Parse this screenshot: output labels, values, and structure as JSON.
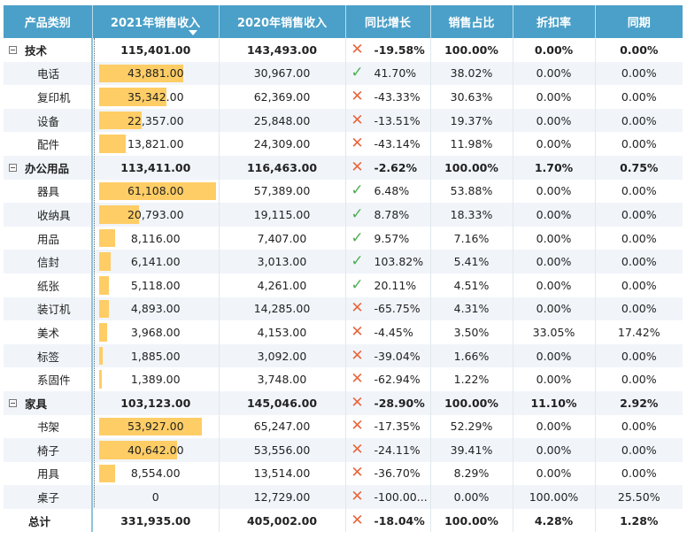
{
  "headers": [
    "产品类别",
    "2021年销售收入",
    "2020年销售收入",
    "同比增长",
    "销售占比",
    "折扣率",
    "同期"
  ],
  "bar_max": 61108,
  "rows": [
    {
      "type": "group",
      "label": "技术",
      "v2021": "115,401.00",
      "v2020": "143,493.00",
      "yoy": "-19.58%",
      "yoy_dir": "down",
      "share": "100.00%",
      "discount": "0.00%",
      "same": "0.00%"
    },
    {
      "type": "item",
      "label": "电话",
      "v2021": "43,881.00",
      "val": 43881,
      "v2020": "30,967.00",
      "yoy": "41.70%",
      "yoy_dir": "up",
      "share": "38.02%",
      "discount": "0.00%",
      "same": "0.00%"
    },
    {
      "type": "item",
      "label": "复印机",
      "v2021": "35,342.00",
      "val": 35342,
      "v2020": "62,369.00",
      "yoy": "-43.33%",
      "yoy_dir": "down",
      "share": "30.63%",
      "discount": "0.00%",
      "same": "0.00%"
    },
    {
      "type": "item",
      "label": "设备",
      "v2021": "22,357.00",
      "val": 22357,
      "v2020": "25,848.00",
      "yoy": "-13.51%",
      "yoy_dir": "down",
      "share": "19.37%",
      "discount": "0.00%",
      "same": "0.00%"
    },
    {
      "type": "item",
      "label": "配件",
      "v2021": "13,821.00",
      "val": 13821,
      "v2020": "24,309.00",
      "yoy": "-43.14%",
      "yoy_dir": "down",
      "share": "11.98%",
      "discount": "0.00%",
      "same": "0.00%"
    },
    {
      "type": "group",
      "label": "办公用品",
      "v2021": "113,411.00",
      "v2020": "116,463.00",
      "yoy": "-2.62%",
      "yoy_dir": "down",
      "share": "100.00%",
      "discount": "1.70%",
      "same": "0.75%"
    },
    {
      "type": "item",
      "label": "器具",
      "v2021": "61,108.00",
      "val": 61108,
      "v2020": "57,389.00",
      "yoy": "6.48%",
      "yoy_dir": "up",
      "share": "53.88%",
      "discount": "0.00%",
      "same": "0.00%"
    },
    {
      "type": "item",
      "label": "收纳具",
      "v2021": "20,793.00",
      "val": 20793,
      "v2020": "19,115.00",
      "yoy": "8.78%",
      "yoy_dir": "up",
      "share": "18.33%",
      "discount": "0.00%",
      "same": "0.00%"
    },
    {
      "type": "item",
      "label": "用品",
      "v2021": "8,116.00",
      "val": 8116,
      "v2020": "7,407.00",
      "yoy": "9.57%",
      "yoy_dir": "up",
      "share": "7.16%",
      "discount": "0.00%",
      "same": "0.00%"
    },
    {
      "type": "item",
      "label": "信封",
      "v2021": "6,141.00",
      "val": 6141,
      "v2020": "3,013.00",
      "yoy": "103.82%",
      "yoy_dir": "up",
      "share": "5.41%",
      "discount": "0.00%",
      "same": "0.00%"
    },
    {
      "type": "item",
      "label": "纸张",
      "v2021": "5,118.00",
      "val": 5118,
      "v2020": "4,261.00",
      "yoy": "20.11%",
      "yoy_dir": "up",
      "share": "4.51%",
      "discount": "0.00%",
      "same": "0.00%"
    },
    {
      "type": "item",
      "label": "装订机",
      "v2021": "4,893.00",
      "val": 4893,
      "v2020": "14,285.00",
      "yoy": "-65.75%",
      "yoy_dir": "down",
      "share": "4.31%",
      "discount": "0.00%",
      "same": "0.00%"
    },
    {
      "type": "item",
      "label": "美术",
      "v2021": "3,968.00",
      "val": 3968,
      "v2020": "4,153.00",
      "yoy": "-4.45%",
      "yoy_dir": "down",
      "share": "3.50%",
      "discount": "33.05%",
      "same": "17.42%"
    },
    {
      "type": "item",
      "label": "标签",
      "v2021": "1,885.00",
      "val": 1885,
      "v2020": "3,092.00",
      "yoy": "-39.04%",
      "yoy_dir": "down",
      "share": "1.66%",
      "discount": "0.00%",
      "same": "0.00%"
    },
    {
      "type": "item",
      "label": "系固件",
      "v2021": "1,389.00",
      "val": 1389,
      "v2020": "3,748.00",
      "yoy": "-62.94%",
      "yoy_dir": "down",
      "share": "1.22%",
      "discount": "0.00%",
      "same": "0.00%"
    },
    {
      "type": "group",
      "label": "家具",
      "v2021": "103,123.00",
      "v2020": "145,046.00",
      "yoy": "-28.90%",
      "yoy_dir": "down",
      "share": "100.00%",
      "discount": "11.10%",
      "same": "2.92%"
    },
    {
      "type": "item",
      "label": "书架",
      "v2021": "53,927.00",
      "val": 53927,
      "v2020": "65,247.00",
      "yoy": "-17.35%",
      "yoy_dir": "down",
      "share": "52.29%",
      "discount": "0.00%",
      "same": "0.00%"
    },
    {
      "type": "item",
      "label": "椅子",
      "v2021": "40,642.00",
      "val": 40642,
      "v2020": "53,556.00",
      "yoy": "-24.11%",
      "yoy_dir": "down",
      "share": "39.41%",
      "discount": "0.00%",
      "same": "0.00%"
    },
    {
      "type": "item",
      "label": "用具",
      "v2021": "8,554.00",
      "val": 8554,
      "v2020": "13,514.00",
      "yoy": "-36.70%",
      "yoy_dir": "down",
      "share": "8.29%",
      "discount": "0.00%",
      "same": "0.00%"
    },
    {
      "type": "item",
      "label": "桌子",
      "v2021": "0",
      "val": 0,
      "v2020": "12,729.00",
      "yoy": "-100.00...",
      "yoy_dir": "down",
      "share": "0.00%",
      "discount": "100.00%",
      "same": "25.50%"
    },
    {
      "type": "total",
      "label": "总计",
      "v2021": "331,935.00",
      "v2020": "405,002.00",
      "yoy": "-18.04%",
      "yoy_dir": "down",
      "share": "100.00%",
      "discount": "4.28%",
      "same": "1.28%"
    }
  ],
  "icons": {
    "down": "cross-icon",
    "up": "check-icon"
  },
  "colors": {
    "header_bg": "#4aa0c8",
    "bar": "#ffcd66",
    "negative": "#e8663e",
    "positive": "#4caf50",
    "row_alt": "#f1f5fa"
  }
}
